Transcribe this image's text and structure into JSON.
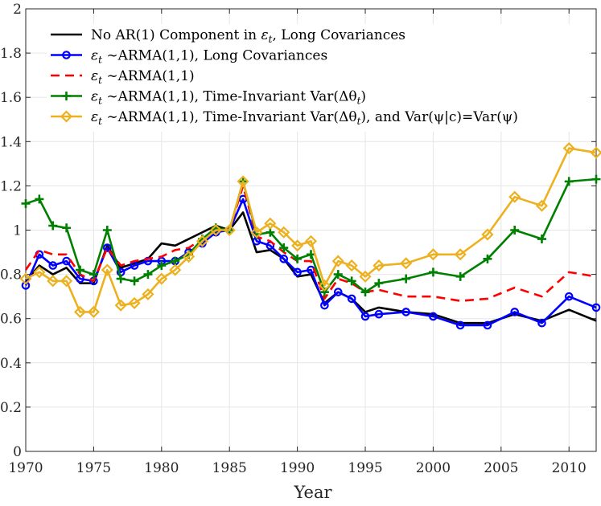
{
  "chart_data": {
    "type": "line",
    "title": "",
    "xlabel": "Year",
    "ylabel": "",
    "xlim": [
      1970,
      2012
    ],
    "ylim": [
      0,
      2
    ],
    "xticks": [
      1970,
      1975,
      1980,
      1985,
      1990,
      1995,
      2000,
      2005,
      2010
    ],
    "yticks": [
      0,
      0.2,
      0.4,
      0.6,
      0.8,
      1,
      1.2,
      1.4,
      1.6,
      1.8,
      2
    ],
    "grid": true,
    "legend_position": "top-left",
    "x": [
      1970,
      1971,
      1972,
      1973,
      1974,
      1975,
      1976,
      1977,
      1978,
      1979,
      1980,
      1981,
      1982,
      1983,
      1984,
      1985,
      1986,
      1987,
      1988,
      1989,
      1990,
      1991,
      1992,
      1993,
      1994,
      1995,
      1996,
      1998,
      2000,
      2002,
      2004,
      2006,
      2008,
      2010,
      2012
    ],
    "series": [
      {
        "name": "No AR(1) Component in εt, Long Covariances",
        "color": "#000000",
        "style": "solid",
        "marker": "none",
        "values": [
          0.77,
          0.84,
          0.8,
          0.83,
          0.76,
          0.76,
          0.93,
          0.83,
          0.85,
          0.87,
          0.94,
          0.93,
          0.96,
          0.99,
          1.02,
          1.0,
          1.08,
          0.9,
          0.91,
          0.87,
          0.79,
          0.8,
          0.67,
          0.72,
          0.69,
          0.63,
          0.65,
          0.63,
          0.62,
          0.58,
          0.58,
          0.62,
          0.59,
          0.64,
          0.59
        ]
      },
      {
        "name": "εt ~ARMA(1,1), Long Covariances",
        "color": "#0000ff",
        "style": "solid",
        "marker": "circle",
        "values": [
          0.75,
          0.89,
          0.84,
          0.86,
          0.78,
          0.77,
          0.92,
          0.81,
          0.84,
          0.86,
          0.86,
          0.86,
          0.9,
          0.94,
          0.99,
          1.0,
          1.14,
          0.95,
          0.93,
          0.87,
          0.81,
          0.82,
          0.66,
          0.72,
          0.69,
          0.61,
          0.62,
          0.63,
          0.61,
          0.57,
          0.57,
          0.63,
          0.58,
          0.7,
          0.65
        ]
      },
      {
        "name": "εt ~ARMA(1,1)",
        "color": "#ff0000",
        "style": "dashed",
        "marker": "none",
        "values": [
          0.82,
          0.91,
          0.89,
          0.89,
          0.8,
          0.77,
          0.92,
          0.84,
          0.86,
          0.87,
          0.88,
          0.91,
          0.92,
          0.96,
          1.0,
          1.0,
          1.2,
          0.97,
          0.95,
          0.9,
          0.86,
          0.86,
          0.69,
          0.78,
          0.76,
          0.72,
          0.73,
          0.7,
          0.7,
          0.68,
          0.69,
          0.74,
          0.7,
          0.81,
          0.79
        ]
      },
      {
        "name": "εt ~ARMA(1,1), Time-Invariant Var(Δθt)",
        "color": "#008000",
        "style": "solid",
        "marker": "plus",
        "values": [
          1.12,
          1.14,
          1.02,
          1.01,
          0.82,
          0.8,
          1.0,
          0.78,
          0.77,
          0.8,
          0.84,
          0.86,
          0.89,
          0.96,
          1.01,
          1.0,
          1.22,
          0.98,
          0.99,
          0.92,
          0.87,
          0.89,
          0.72,
          0.8,
          0.77,
          0.72,
          0.76,
          0.78,
          0.81,
          0.79,
          0.87,
          1.0,
          0.96,
          1.22,
          1.23
        ]
      },
      {
        "name": "εt ~ARMA(1,1), Time-Invariant Var(Δθt), and Var(ψ|c)=Var(ψ)",
        "color": "#edb120",
        "style": "solid",
        "marker": "diamond",
        "values": [
          0.78,
          0.81,
          0.77,
          0.77,
          0.63,
          0.63,
          0.82,
          0.66,
          0.67,
          0.71,
          0.78,
          0.82,
          0.88,
          0.95,
          1.0,
          1.0,
          1.22,
          0.99,
          1.03,
          0.99,
          0.93,
          0.95,
          0.75,
          0.86,
          0.84,
          0.79,
          0.84,
          0.85,
          0.89,
          0.89,
          0.98,
          1.15,
          1.11,
          1.37,
          1.35
        ]
      }
    ]
  },
  "legend": {
    "entries": [
      {
        "prefix": "No AR(1) Component in ",
        "sym": "ε",
        "sub": "t",
        "suffix": ", Long Covariances"
      },
      {
        "prefix": "",
        "sym": "ε",
        "sub": "t",
        "suffix": " ∼ARMA(1,1), Long Covariances"
      },
      {
        "prefix": "",
        "sym": "ε",
        "sub": "t",
        "suffix": " ∼ARMA(1,1)"
      },
      {
        "prefix": "",
        "sym": "ε",
        "sub": "t",
        "suffix": " ∼ARMA(1,1), Time-Invariant Var(Δθ",
        "sub2": "t",
        "suffix2": ")"
      },
      {
        "prefix": "",
        "sym": "ε",
        "sub": "t",
        "suffix": " ∼ARMA(1,1), Time-Invariant Var(Δθ",
        "sub2": "t",
        "suffix2": "), and Var(ψ|c)=Var(ψ)"
      }
    ]
  }
}
